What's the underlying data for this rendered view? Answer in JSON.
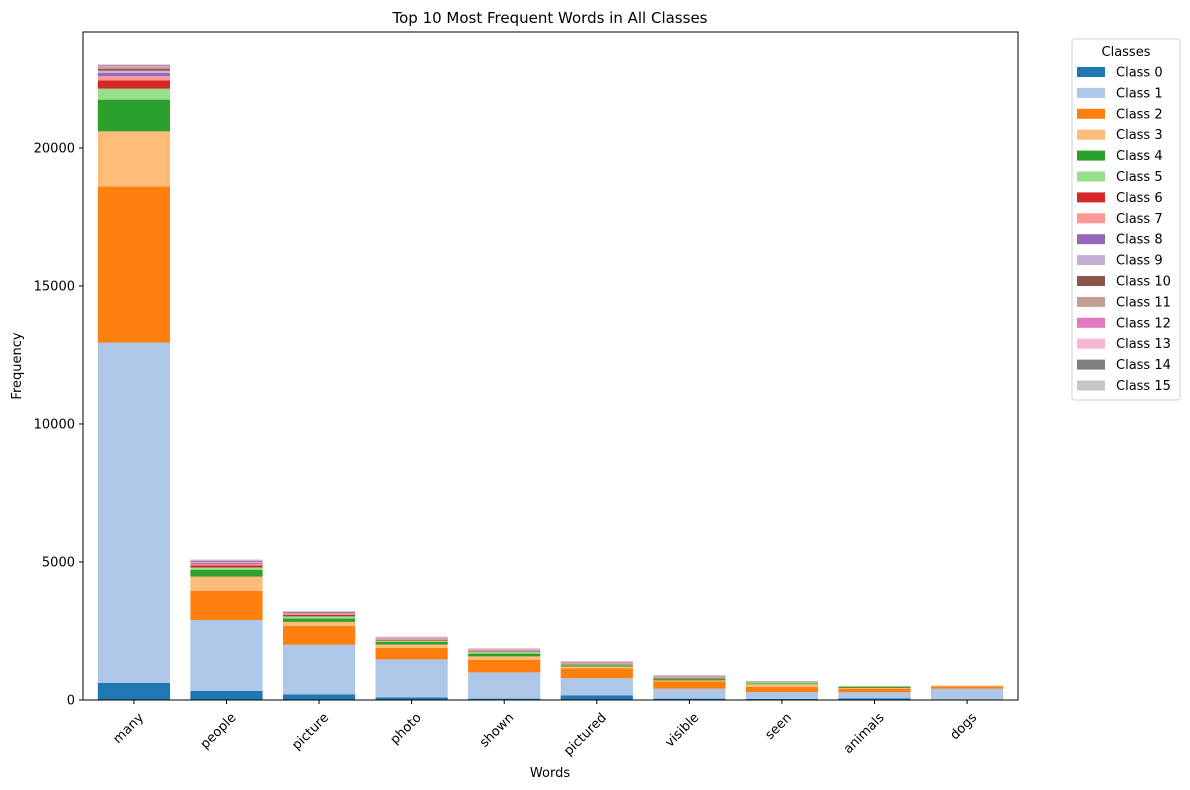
{
  "chart_data": {
    "type": "bar",
    "stacked": true,
    "title": "Top 10 Most Frequent Words in All Classes",
    "xlabel": "Words",
    "ylabel": "Frequency",
    "ylim": [
      0,
      24200
    ],
    "yticks": [
      0,
      5000,
      10000,
      15000,
      20000
    ],
    "grid": false,
    "legend": {
      "title": "Classes",
      "placement": "outside-top-right"
    },
    "categories": [
      "many",
      "people",
      "picture",
      "photo",
      "shown",
      "pictured",
      "visible",
      "seen",
      "animals",
      "dogs"
    ],
    "series": [
      {
        "name": "Class 0",
        "color": "#1f77b4",
        "values": [
          620,
          330,
          200,
          90,
          50,
          170,
          50,
          40,
          60,
          20
        ]
      },
      {
        "name": "Class 1",
        "color": "#aec7e8",
        "values": [
          12330,
          2570,
          1800,
          1380,
          950,
          620,
          360,
          250,
          220,
          390
        ]
      },
      {
        "name": "Class 2",
        "color": "#ff7f0e",
        "values": [
          5650,
          1050,
          680,
          420,
          460,
          360,
          260,
          190,
          130,
          90
        ]
      },
      {
        "name": "Class 3",
        "color": "#ffbb78",
        "values": [
          2000,
          520,
          150,
          120,
          120,
          60,
          40,
          90,
          20,
          20
        ]
      },
      {
        "name": "Class 4",
        "color": "#2ca02c",
        "values": [
          1150,
          250,
          120,
          100,
          100,
          50,
          50,
          30,
          40,
          0
        ]
      },
      {
        "name": "Class 5",
        "color": "#98df8a",
        "values": [
          400,
          80,
          80,
          40,
          60,
          30,
          20,
          50,
          20,
          0
        ]
      },
      {
        "name": "Class 6",
        "color": "#d62728",
        "values": [
          300,
          80,
          50,
          30,
          20,
          20,
          20,
          10,
          10,
          0
        ]
      },
      {
        "name": "Class 7",
        "color": "#ff9896",
        "values": [
          150,
          50,
          30,
          20,
          20,
          20,
          20,
          10,
          10,
          0
        ]
      },
      {
        "name": "Class 8",
        "color": "#9467bd",
        "values": [
          120,
          40,
          20,
          20,
          10,
          10,
          10,
          10,
          0,
          0
        ]
      },
      {
        "name": "Class 9",
        "color": "#c5b0d5",
        "values": [
          80,
          30,
          20,
          20,
          20,
          10,
          10,
          10,
          0,
          0
        ]
      },
      {
        "name": "Class 10",
        "color": "#8c564b",
        "values": [
          60,
          20,
          20,
          10,
          10,
          10,
          10,
          0,
          0,
          0
        ]
      },
      {
        "name": "Class 11",
        "color": "#c49c94",
        "values": [
          50,
          20,
          10,
          10,
          10,
          10,
          10,
          0,
          0,
          0
        ]
      },
      {
        "name": "Class 12",
        "color": "#e377c2",
        "values": [
          40,
          20,
          10,
          10,
          10,
          10,
          10,
          0,
          0,
          0
        ]
      },
      {
        "name": "Class 13",
        "color": "#f7b6d2",
        "values": [
          30,
          10,
          10,
          10,
          10,
          10,
          10,
          0,
          0,
          0
        ]
      },
      {
        "name": "Class 14",
        "color": "#7f7f7f",
        "values": [
          30,
          10,
          10,
          10,
          10,
          10,
          10,
          0,
          0,
          0
        ]
      },
      {
        "name": "Class 15",
        "color": "#c7c7c7",
        "values": [
          20,
          10,
          10,
          10,
          10,
          10,
          10,
          0,
          0,
          0
        ]
      }
    ]
  }
}
